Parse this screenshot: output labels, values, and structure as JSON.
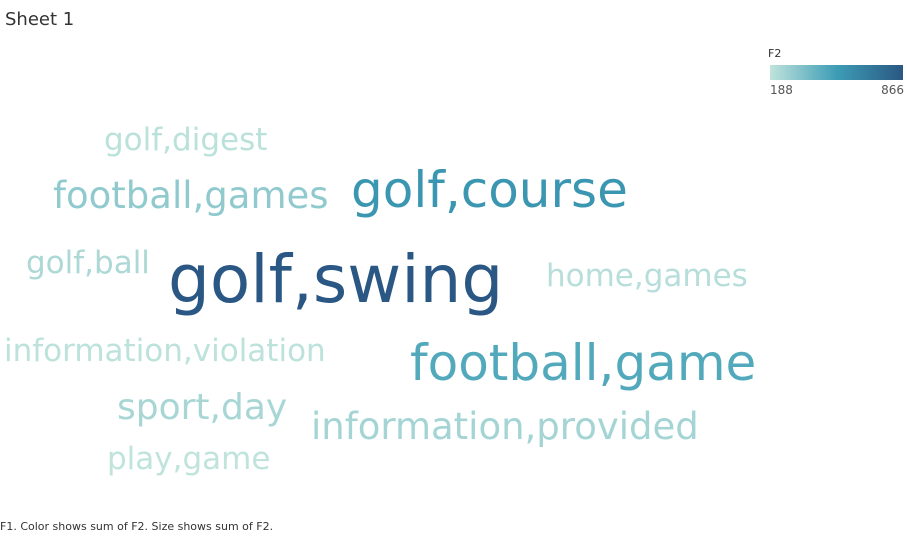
{
  "sheet": {
    "title": "Sheet 1"
  },
  "legend": {
    "title": "F2",
    "min_label": "188",
    "max_label": "866",
    "color_low": "#c0e3dc",
    "color_mid": "#3d9db6",
    "color_high": "#2a5783"
  },
  "footer": {
    "caption": "F1.  Color shows sum of F2.  Size shows sum of F2."
  },
  "chart_data": {
    "type": "wordcloud",
    "color_by": "F2",
    "size_by": "F2",
    "color_range": [
      188,
      866
    ],
    "words": [
      {
        "text": "golf,digest",
        "value": 200
      },
      {
        "text": "football,games",
        "value": 310
      },
      {
        "text": "golf,course",
        "value": 560
      },
      {
        "text": "golf,ball",
        "value": 240
      },
      {
        "text": "golf,swing",
        "value": 866
      },
      {
        "text": "home,games",
        "value": 210
      },
      {
        "text": "information,violation",
        "value": 195
      },
      {
        "text": "football,game",
        "value": 470
      },
      {
        "text": "sport,day",
        "value": 250
      },
      {
        "text": "information,provided",
        "value": 260
      },
      {
        "text": "play,game",
        "value": 188
      }
    ]
  }
}
